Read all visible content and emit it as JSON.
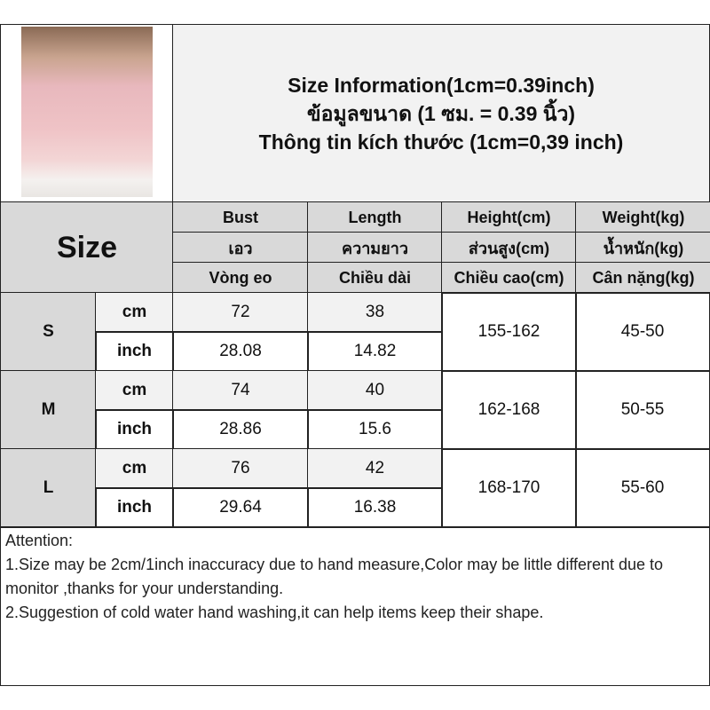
{
  "header": {
    "title_en": "Size Information(1cm=0.39inch)",
    "title_th": "ข้อมูลขนาด (1 ซม. = 0.39 นิ้ว)",
    "title_vi": "Thông tin kích thước (1cm=0,39 inch)"
  },
  "table": {
    "size_label": "Size",
    "columns": [
      {
        "en": "Bust",
        "th": "เอว",
        "vi": "Vòng eo"
      },
      {
        "en": "Length",
        "th": "ความยาว",
        "vi": "Chiều dài"
      },
      {
        "en": "Height(cm)",
        "th": "ส่วนสูง(cm)",
        "vi": "Chiều cao(cm)"
      },
      {
        "en": "Weight(kg)",
        "th": "น้ำหนัก(kg)",
        "vi": "Cân nặng(kg)"
      }
    ],
    "unit_cm": "cm",
    "unit_inch": "inch",
    "rows": [
      {
        "size": "S",
        "bust_cm": "72",
        "length_cm": "38",
        "bust_inch": "28.08",
        "length_inch": "14.82",
        "height": "155-162",
        "weight": "45-50"
      },
      {
        "size": "M",
        "bust_cm": "74",
        "length_cm": "40",
        "bust_inch": "28.86",
        "length_inch": "15.6",
        "height": "162-168",
        "weight": "50-55"
      },
      {
        "size": "L",
        "bust_cm": "76",
        "length_cm": "42",
        "bust_inch": "29.64",
        "length_inch": "16.38",
        "height": "168-170",
        "weight": "55-60"
      }
    ]
  },
  "notes": {
    "heading": "Attention:",
    "line1": "1.Size may be 2cm/1inch inaccuracy due to hand measure,Color may be little different due to monitor ,thanks for your understanding.",
    "line2": "2.Suggestion of cold water hand washing,it can help items keep their shape."
  }
}
